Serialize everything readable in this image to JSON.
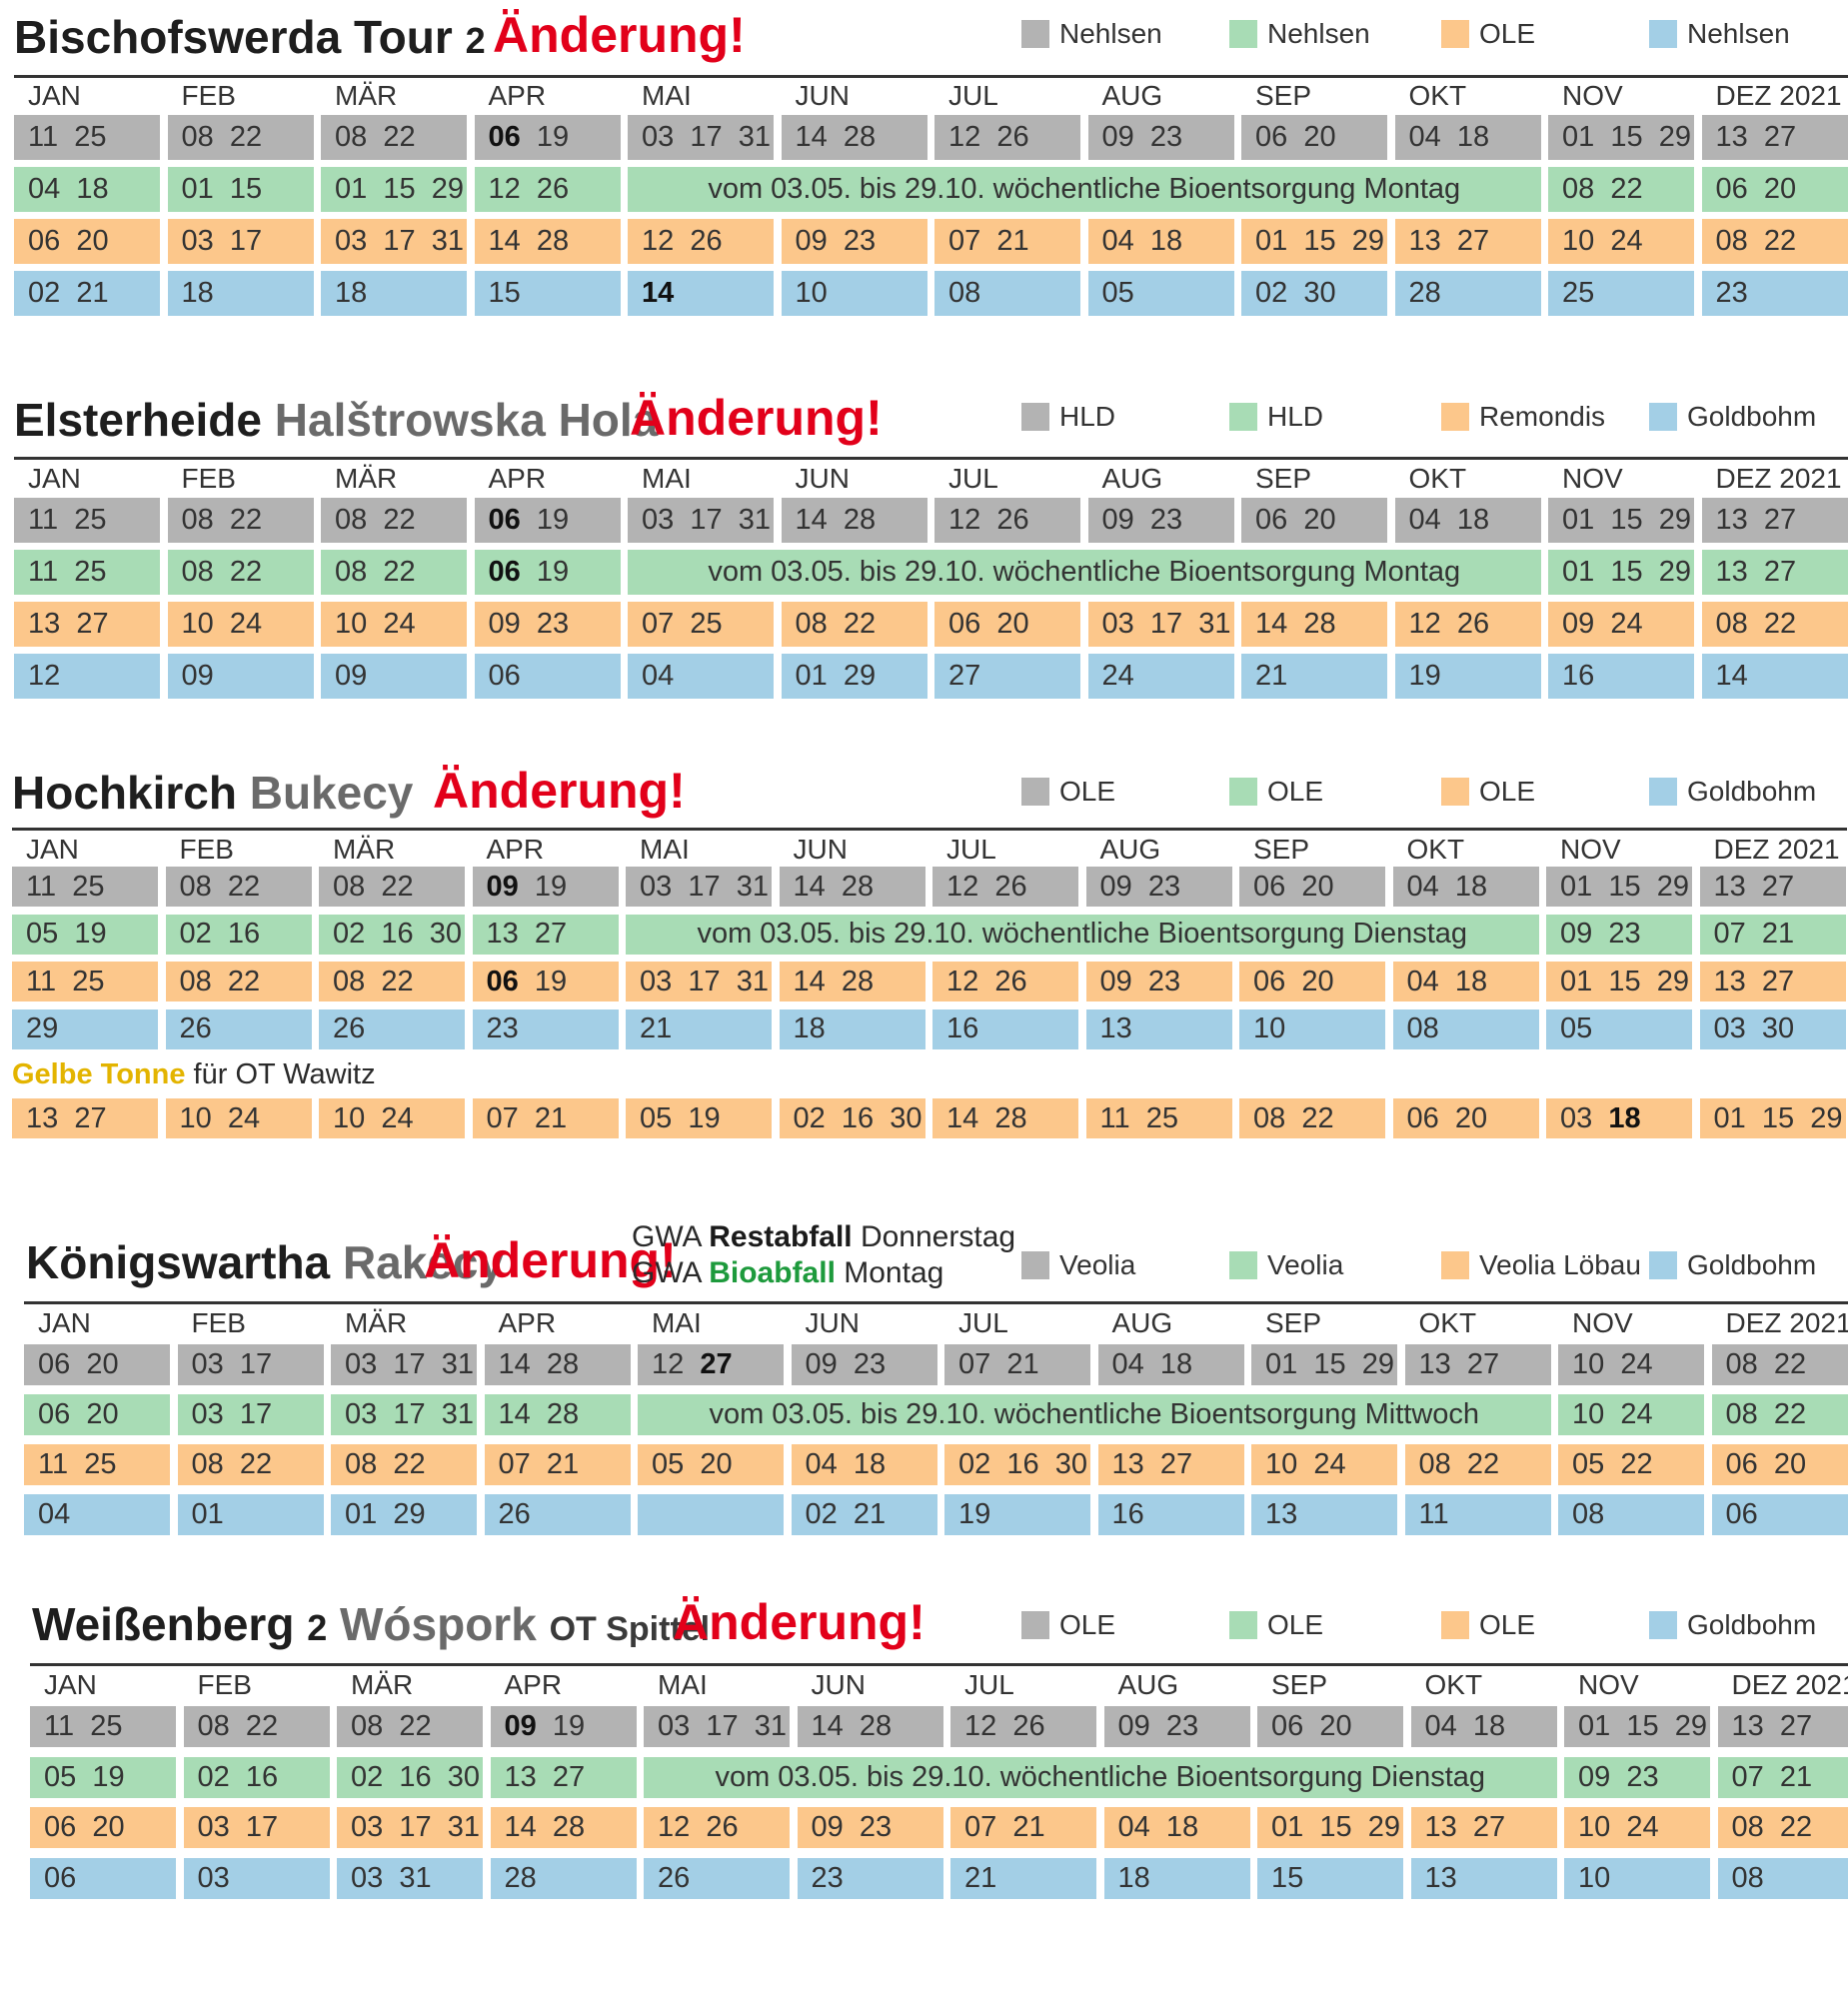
{
  "colors": {
    "grey": "#b3b3b3",
    "green": "#a8dcb5",
    "orange": "#fcc78b",
    "blue": "#a3cfe6",
    "change": "#e2001a",
    "gelbe_tonne": "#e3b400"
  },
  "schedules": [
    {
      "title_main": "Bischofswerda Tour",
      "title_num": "2",
      "title_sub": "",
      "title_ot": "",
      "change_label": "Änderung!",
      "legend": [
        {
          "color": "grey",
          "label": "Nehlsen"
        },
        {
          "color": "green",
          "label": "Nehlsen"
        },
        {
          "color": "orange",
          "label": "OLE"
        },
        {
          "color": "blue",
          "label": "Nehlsen"
        }
      ],
      "months": [
        "JAN",
        "FEB",
        "MÄR",
        "APR",
        "MAI",
        "JUN",
        "JUL",
        "AUG",
        "SEP",
        "OKT",
        "NOV",
        "DEZ 2021"
      ],
      "rows": [
        {
          "color": "grey",
          "cells": [
            [
              "11  25"
            ],
            [
              "08  22"
            ],
            [
              "08  22"
            ],
            [
              {
                "t": "06",
                "b": true
              },
              "  19"
            ],
            [
              "03  17  31"
            ],
            [
              "14  28"
            ],
            [
              "12  26"
            ],
            [
              "09  23"
            ],
            [
              "06  20"
            ],
            [
              "04  18"
            ],
            [
              "01  15  29"
            ],
            [
              "13  27"
            ]
          ]
        },
        {
          "color": "green",
          "merged": "vom 03.05. bis 29.10. wöchentliche Bioentsorgung Montag",
          "cells": [
            [
              "04  18"
            ],
            [
              "01  15"
            ],
            [
              "01  15  29"
            ],
            [
              "12  26"
            ],
            null,
            null,
            null,
            null,
            null,
            null,
            [
              "08  22"
            ],
            [
              "06  20"
            ]
          ]
        },
        {
          "color": "orange",
          "cells": [
            [
              "06  20"
            ],
            [
              "03  17"
            ],
            [
              "03  17  31"
            ],
            [
              "14  28"
            ],
            [
              "12  26"
            ],
            [
              "09  23"
            ],
            [
              "07  21"
            ],
            [
              "04  18"
            ],
            [
              "01  15  29"
            ],
            [
              "13  27"
            ],
            [
              "10  24"
            ],
            [
              "08  22"
            ]
          ]
        },
        {
          "color": "blue",
          "cells": [
            [
              "02  21"
            ],
            [
              "18"
            ],
            [
              "18"
            ],
            [
              "15"
            ],
            [
              {
                "t": "14",
                "b": true
              }
            ],
            [
              "10"
            ],
            [
              "08"
            ],
            [
              "05"
            ],
            [
              "02  30"
            ],
            [
              "28"
            ],
            [
              "25"
            ],
            [
              "23"
            ]
          ]
        }
      ]
    },
    {
      "title_main": "Elsterheide",
      "title_num": "",
      "title_sub": "Halštrowska Hola",
      "title_ot": "",
      "change_label": "Änderung!",
      "legend": [
        {
          "color": "grey",
          "label": "HLD"
        },
        {
          "color": "green",
          "label": "HLD"
        },
        {
          "color": "orange",
          "label": "Remondis"
        },
        {
          "color": "blue",
          "label": "Goldbohm"
        }
      ],
      "months": [
        "JAN",
        "FEB",
        "MÄR",
        "APR",
        "MAI",
        "JUN",
        "JUL",
        "AUG",
        "SEP",
        "OKT",
        "NOV",
        "DEZ 2021"
      ],
      "rows": [
        {
          "color": "grey",
          "cells": [
            [
              "11  25"
            ],
            [
              "08  22"
            ],
            [
              "08  22"
            ],
            [
              {
                "t": "06",
                "b": true
              },
              "  19"
            ],
            [
              "03  17  31"
            ],
            [
              "14  28"
            ],
            [
              "12  26"
            ],
            [
              "09  23"
            ],
            [
              "06  20"
            ],
            [
              "04  18"
            ],
            [
              "01  15  29"
            ],
            [
              "13  27"
            ]
          ]
        },
        {
          "color": "green",
          "merged": "vom 03.05. bis 29.10. wöchentliche Bioentsorgung Montag",
          "cells": [
            [
              "11  25"
            ],
            [
              "08  22"
            ],
            [
              "08  22"
            ],
            [
              {
                "t": "06",
                "b": true
              },
              "  19"
            ],
            null,
            null,
            null,
            null,
            null,
            null,
            [
              "01  15  29"
            ],
            [
              "13  27"
            ]
          ]
        },
        {
          "color": "orange",
          "cells": [
            [
              "13  27"
            ],
            [
              "10  24"
            ],
            [
              "10  24"
            ],
            [
              "09  23"
            ],
            [
              "07  25"
            ],
            [
              "08  22"
            ],
            [
              "06  20"
            ],
            [
              "03  17  31"
            ],
            [
              "14  28"
            ],
            [
              "12  26"
            ],
            [
              "09  24"
            ],
            [
              "08  22"
            ]
          ]
        },
        {
          "color": "blue",
          "cells": [
            [
              "12"
            ],
            [
              "09"
            ],
            [
              "09"
            ],
            [
              "06"
            ],
            [
              "04"
            ],
            [
              "01  29"
            ],
            [
              "27"
            ],
            [
              "24"
            ],
            [
              "21"
            ],
            [
              "19"
            ],
            [
              "16"
            ],
            [
              "14"
            ]
          ]
        }
      ]
    },
    {
      "title_main": "Hochkirch",
      "title_num": "",
      "title_sub": "Bukecy",
      "title_ot": "",
      "change_label": "Änderung!",
      "legend": [
        {
          "color": "grey",
          "label": "OLE"
        },
        {
          "color": "green",
          "label": "OLE"
        },
        {
          "color": "orange",
          "label": "OLE"
        },
        {
          "color": "blue",
          "label": "Goldbohm"
        }
      ],
      "months": [
        "JAN",
        "FEB",
        "MÄR",
        "APR",
        "MAI",
        "JUN",
        "JUL",
        "AUG",
        "SEP",
        "OKT",
        "NOV",
        "DEZ 2021"
      ],
      "rows": [
        {
          "color": "grey",
          "cells": [
            [
              "11  25"
            ],
            [
              "08  22"
            ],
            [
              "08  22"
            ],
            [
              {
                "t": "09",
                "b": true
              },
              "  19"
            ],
            [
              "03  17  31"
            ],
            [
              "14  28"
            ],
            [
              "12  26"
            ],
            [
              "09  23"
            ],
            [
              "06  20"
            ],
            [
              "04  18"
            ],
            [
              "01  15  29"
            ],
            [
              "13  27"
            ]
          ]
        },
        {
          "color": "green",
          "merged": "vom 03.05. bis 29.10. wöchentliche Bioentsorgung Dienstag",
          "cells": [
            [
              "05  19"
            ],
            [
              "02  16"
            ],
            [
              "02  16  30"
            ],
            [
              "13  27"
            ],
            null,
            null,
            null,
            null,
            null,
            null,
            [
              "09  23"
            ],
            [
              "07  21"
            ]
          ]
        },
        {
          "color": "orange",
          "cells": [
            [
              "11  25"
            ],
            [
              "08  22"
            ],
            [
              "08  22"
            ],
            [
              {
                "t": "06",
                "b": true
              },
              "  19"
            ],
            [
              "03  17  31"
            ],
            [
              "14  28"
            ],
            [
              "12  26"
            ],
            [
              "09  23"
            ],
            [
              "06  20"
            ],
            [
              "04  18"
            ],
            [
              "01  15  29"
            ],
            [
              "13  27"
            ]
          ]
        },
        {
          "color": "blue",
          "cells": [
            [
              "29"
            ],
            [
              "26"
            ],
            [
              "26"
            ],
            [
              "23"
            ],
            [
              "21"
            ],
            [
              "18"
            ],
            [
              "16"
            ],
            [
              "13"
            ],
            [
              "10"
            ],
            [
              "08"
            ],
            [
              "05"
            ],
            [
              "03  30"
            ]
          ]
        }
      ],
      "extra": {
        "label_highlight": "Gelbe Tonne",
        "label_rest": " für OT Wawitz",
        "row": {
          "color": "orange",
          "cells": [
            [
              "13  27"
            ],
            [
              "10  24"
            ],
            [
              "10  24"
            ],
            [
              "07  21"
            ],
            [
              "05  19"
            ],
            [
              "02  16  30"
            ],
            [
              "14  28"
            ],
            [
              "11  25"
            ],
            [
              "08  22"
            ],
            [
              "06  20"
            ],
            [
              "03  ",
              {
                "t": "18",
                "b": true
              }
            ],
            [
              "01  15  29"
            ]
          ]
        }
      }
    },
    {
      "title_main": "Königswartha",
      "title_num": "",
      "title_sub": "Rakecy",
      "title_ot": "",
      "change_label": "Änderung!",
      "gwa": {
        "line1_pre": "GWA ",
        "line1_hl": "Restabfall",
        "line1_post": " Donnerstag",
        "line2_pre": "GWA ",
        "line2_hl": "Bioabfall",
        "line2_post": " Montag"
      },
      "legend": [
        {
          "color": "grey",
          "label": "Veolia"
        },
        {
          "color": "green",
          "label": "Veolia"
        },
        {
          "color": "orange",
          "label": "Veolia Löbau"
        },
        {
          "color": "blue",
          "label": "Goldbohm"
        }
      ],
      "months": [
        "JAN",
        "FEB",
        "MÄR",
        "APR",
        "MAI",
        "JUN",
        "JUL",
        "AUG",
        "SEP",
        "OKT",
        "NOV",
        "DEZ 2021"
      ],
      "rows": [
        {
          "color": "grey",
          "cells": [
            [
              "06  20"
            ],
            [
              "03  17"
            ],
            [
              "03  17  31"
            ],
            [
              "14  28"
            ],
            [
              "12  ",
              {
                "t": "27",
                "b": true
              }
            ],
            [
              "09  23"
            ],
            [
              "07  21"
            ],
            [
              "04  18"
            ],
            [
              "01  15  29"
            ],
            [
              "13  27"
            ],
            [
              "10  24"
            ],
            [
              "08  22"
            ]
          ]
        },
        {
          "color": "green",
          "merged": "vom 03.05. bis 29.10. wöchentliche Bioentsorgung Mittwoch",
          "cells": [
            [
              "06  20"
            ],
            [
              "03  17"
            ],
            [
              "03  17  31"
            ],
            [
              "14  28"
            ],
            null,
            null,
            null,
            null,
            null,
            null,
            [
              "10  24"
            ],
            [
              "08  22"
            ]
          ]
        },
        {
          "color": "orange",
          "cells": [
            [
              "11  25"
            ],
            [
              "08  22"
            ],
            [
              "08  22"
            ],
            [
              "07  21"
            ],
            [
              "05  20"
            ],
            [
              "04  18"
            ],
            [
              "02  16  30"
            ],
            [
              "13  27"
            ],
            [
              "10  24"
            ],
            [
              "08  22"
            ],
            [
              "05  22"
            ],
            [
              "06  20"
            ]
          ]
        },
        {
          "color": "blue",
          "cells": [
            [
              "04"
            ],
            [
              "01"
            ],
            [
              "01  29"
            ],
            [
              "26"
            ],
            [
              ""
            ],
            [
              "02  21"
            ],
            [
              "19"
            ],
            [
              "16"
            ],
            [
              "13"
            ],
            [
              "11"
            ],
            [
              "08"
            ],
            [
              "06"
            ]
          ]
        }
      ]
    },
    {
      "title_main": "Weißenberg",
      "title_num": "2",
      "title_sub": "Wóspork",
      "title_ot": "OT Spittel",
      "change_label": "Änderung!",
      "legend": [
        {
          "color": "grey",
          "label": "OLE"
        },
        {
          "color": "green",
          "label": "OLE"
        },
        {
          "color": "orange",
          "label": "OLE"
        },
        {
          "color": "blue",
          "label": "Goldbohm"
        }
      ],
      "months": [
        "JAN",
        "FEB",
        "MÄR",
        "APR",
        "MAI",
        "JUN",
        "JUL",
        "AUG",
        "SEP",
        "OKT",
        "NOV",
        "DEZ 2021"
      ],
      "rows": [
        {
          "color": "grey",
          "cells": [
            [
              "11  25"
            ],
            [
              "08  22"
            ],
            [
              "08  22"
            ],
            [
              {
                "t": "09",
                "b": true
              },
              "  19"
            ],
            [
              "03  17  31"
            ],
            [
              "14  28"
            ],
            [
              "12  26"
            ],
            [
              "09  23"
            ],
            [
              "06  20"
            ],
            [
              "04  18"
            ],
            [
              "01  15  29"
            ],
            [
              "13  27"
            ]
          ]
        },
        {
          "color": "green",
          "merged": "vom 03.05. bis 29.10. wöchentliche Bioentsorgung Dienstag",
          "cells": [
            [
              "05  19"
            ],
            [
              "02  16"
            ],
            [
              "02  16  30"
            ],
            [
              "13  27"
            ],
            null,
            null,
            null,
            null,
            null,
            null,
            [
              "09  23"
            ],
            [
              "07  21"
            ]
          ]
        },
        {
          "color": "orange",
          "cells": [
            [
              "06  20"
            ],
            [
              "03  17"
            ],
            [
              "03  17  31"
            ],
            [
              "14  28"
            ],
            [
              "12  26"
            ],
            [
              "09  23"
            ],
            [
              "07  21"
            ],
            [
              "04  18"
            ],
            [
              "01  15  29"
            ],
            [
              "13  27"
            ],
            [
              "10  24"
            ],
            [
              "08  22"
            ]
          ]
        },
        {
          "color": "blue",
          "cells": [
            [
              "06"
            ],
            [
              "03"
            ],
            [
              "03  31"
            ],
            [
              "28"
            ],
            [
              "26"
            ],
            [
              "23"
            ],
            [
              "21"
            ],
            [
              "18"
            ],
            [
              "15"
            ],
            [
              "13"
            ],
            [
              "10"
            ],
            [
              "08"
            ]
          ]
        }
      ]
    }
  ]
}
